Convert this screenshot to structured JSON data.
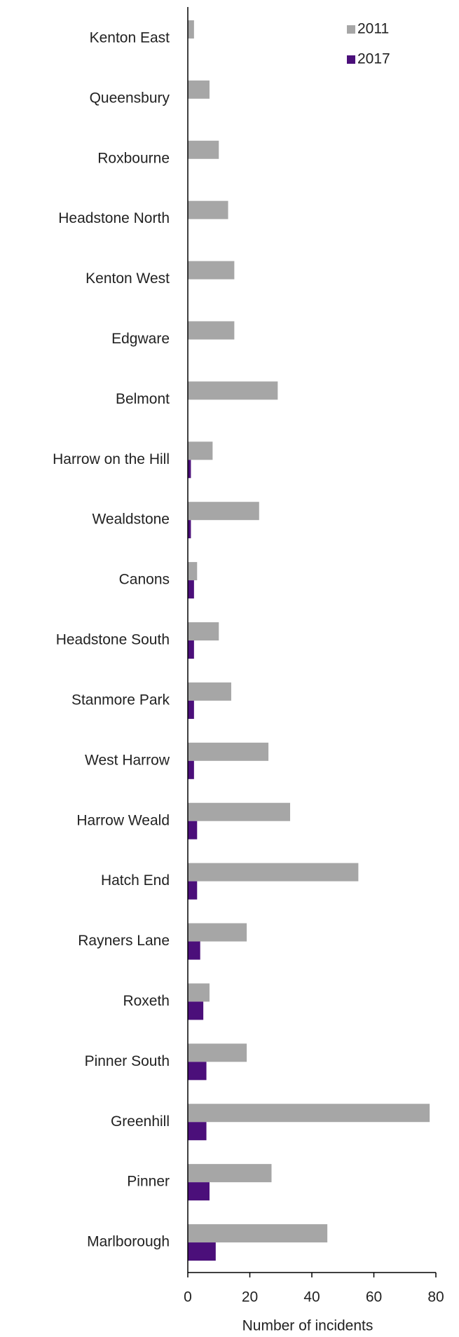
{
  "chart_data": {
    "type": "bar",
    "orientation": "horizontal",
    "x_label": "Number of incidents",
    "categories": [
      "Kenton East",
      "Queensbury",
      "Roxbourne",
      "Headstone North",
      "Kenton West",
      "Edgware",
      "Belmont",
      "Harrow on the Hill",
      "Wealdstone",
      "Canons",
      "Headstone South",
      "Stanmore Park",
      "West Harrow",
      "Harrow Weald",
      "Hatch End",
      "Rayners Lane",
      "Roxeth",
      "Pinner South",
      "Greenhill",
      "Pinner",
      "Marlborough"
    ],
    "series": [
      {
        "name": "2011",
        "color": "#a6a6a6",
        "values": [
          2,
          7,
          10,
          13,
          15,
          15,
          29,
          8,
          23,
          3,
          10,
          14,
          26,
          33,
          55,
          19,
          7,
          19,
          78,
          27,
          45
        ]
      },
      {
        "name": "2017",
        "color": "#4b0f7a",
        "values": [
          0,
          0,
          0,
          0,
          0,
          0,
          0,
          1,
          1,
          2,
          2,
          2,
          2,
          3,
          3,
          4,
          5,
          6,
          6,
          7,
          9
        ]
      }
    ],
    "xlim": [
      0,
      80
    ],
    "xticks": [
      0,
      20,
      40,
      60,
      80
    ],
    "legend": "top-right",
    "grid": false
  }
}
